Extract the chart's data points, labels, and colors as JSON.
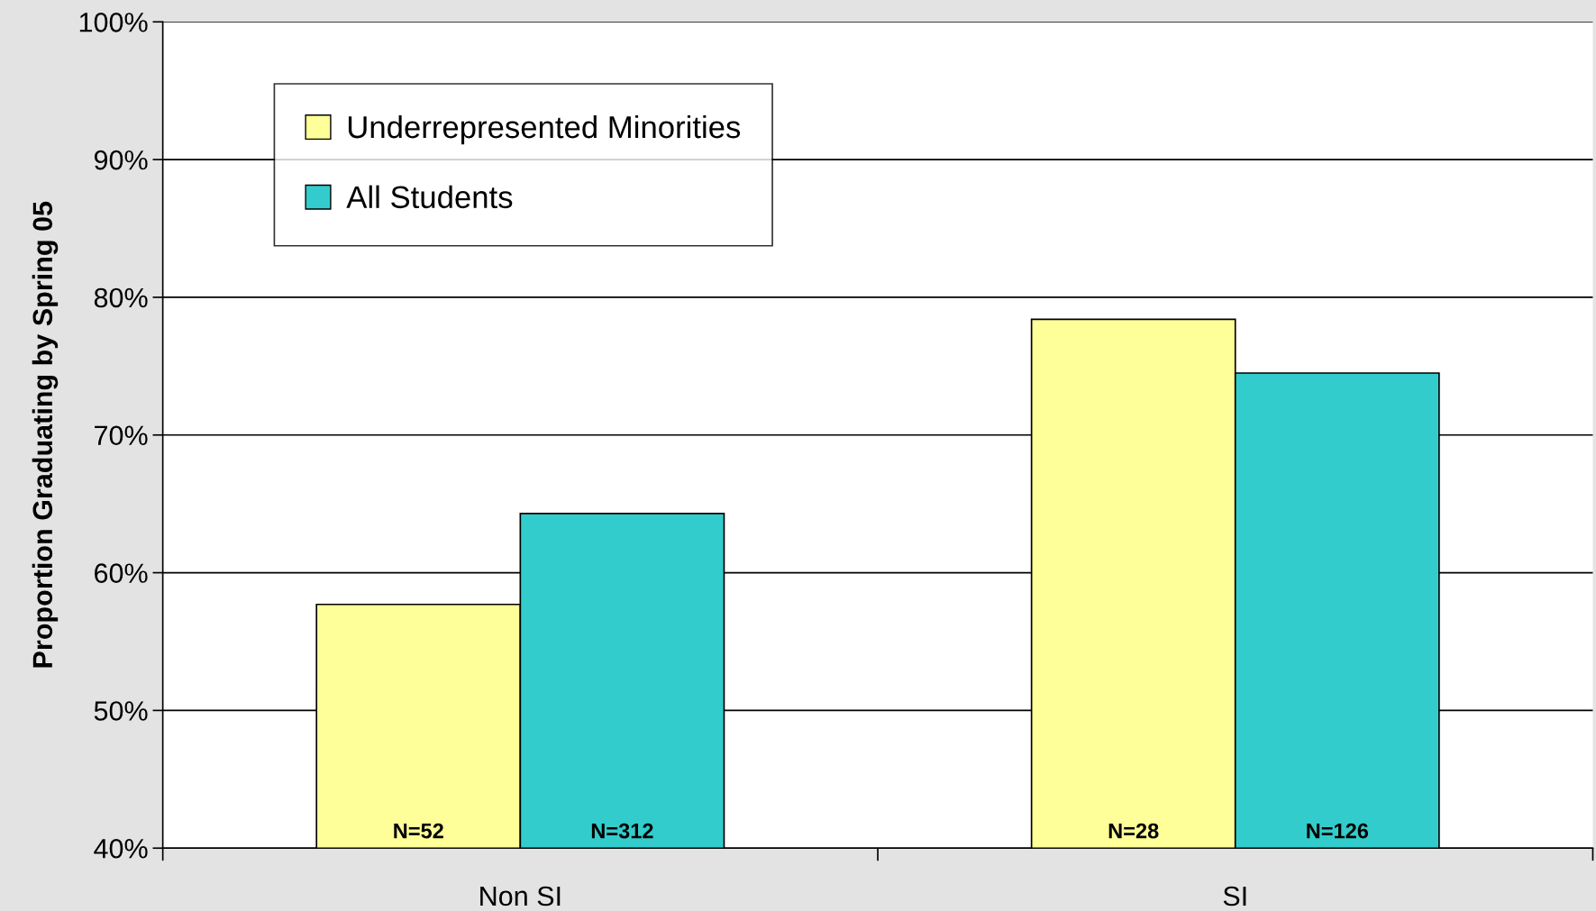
{
  "chart_data": {
    "type": "bar",
    "ylabel": "Proportion Graduating by Spring 05",
    "categories": [
      "Non SI",
      "SI"
    ],
    "series": [
      {
        "name": "Underrepresented Minorities",
        "color": "#ffff99",
        "values": [
          57.7,
          78.4
        ]
      },
      {
        "name": "All Students",
        "color": "#33cccc",
        "values": [
          64.3,
          74.5
        ]
      }
    ],
    "annotations": [
      "N=52",
      "N=312",
      "N=28",
      "N=126"
    ],
    "ylim": [
      40,
      100
    ],
    "yticks": [
      {
        "value": 40,
        "label": "40%"
      },
      {
        "value": 50,
        "label": "50%"
      },
      {
        "value": 60,
        "label": "60%"
      },
      {
        "value": 70,
        "label": "70%"
      },
      {
        "value": 80,
        "label": "80%"
      },
      {
        "value": 90,
        "label": "90%"
      },
      {
        "value": 100,
        "label": "100%"
      }
    ],
    "grid": "y",
    "legend": "top left"
  }
}
